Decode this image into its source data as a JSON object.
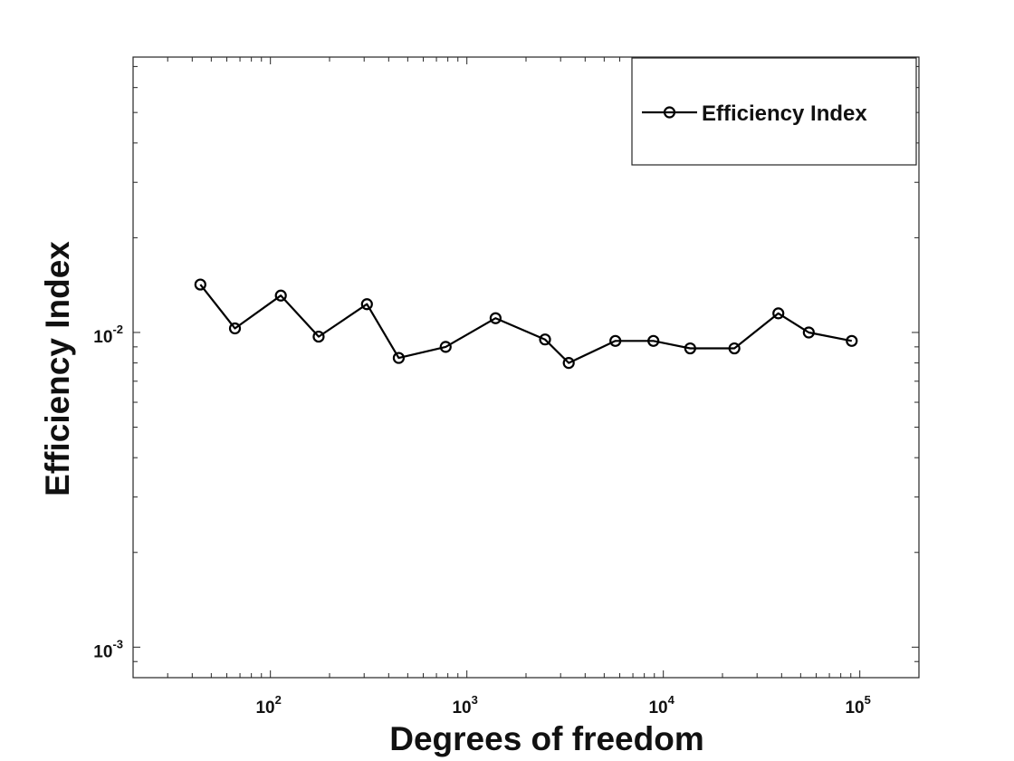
{
  "chart_data": {
    "type": "line",
    "title": "",
    "xlabel": "Degrees of freedom",
    "ylabel": "Efficiency Index",
    "xscale": "log",
    "yscale": "log",
    "xlim": [
      20,
      200000
    ],
    "ylim": [
      0.0008,
      0.075
    ],
    "x_ticks": [
      {
        "value": 100,
        "base": "10",
        "exp": "2"
      },
      {
        "value": 1000,
        "base": "10",
        "exp": "3"
      },
      {
        "value": 10000,
        "base": "10",
        "exp": "4"
      },
      {
        "value": 100000,
        "base": "10",
        "exp": "5"
      }
    ],
    "y_ticks": [
      {
        "value": 0.001,
        "base": "10",
        "exp": "-3"
      },
      {
        "value": 0.01,
        "base": "10",
        "exp": "-2"
      }
    ],
    "grid": false,
    "legend_position": "top-right",
    "series": [
      {
        "name": "Efficiency Index",
        "color": "#000000",
        "marker": "circle",
        "x": [
          44,
          66,
          113,
          176,
          310,
          450,
          780,
          1400,
          2500,
          3300,
          5700,
          8900,
          13700,
          23000,
          38500,
          55000,
          91000
        ],
        "y": [
          0.0142,
          0.0103,
          0.0131,
          0.0097,
          0.0123,
          0.0083,
          0.009,
          0.0111,
          0.0095,
          0.008,
          0.0094,
          0.0094,
          0.0089,
          0.0089,
          0.0115,
          0.01,
          0.0094
        ]
      }
    ]
  }
}
